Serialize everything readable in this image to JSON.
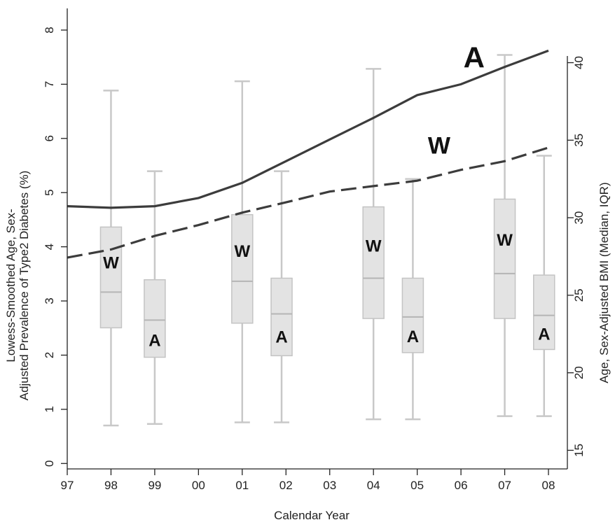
{
  "chart_data": {
    "type": "line",
    "xlabel": "Calendar Year",
    "ylabel_left": [
      "Lowess-Smoothed Age, Sex-",
      "Adjusted Prevalence of Type2 Diabetes (%)"
    ],
    "ylabel_right": "Age, Sex-Adjusted BMI (Median, IQR)",
    "x_ticks": [
      "97",
      "98",
      "99",
      "00",
      "01",
      "02",
      "03",
      "04",
      "05",
      "06",
      "07",
      "08"
    ],
    "y_left": {
      "range": [
        -0.1,
        8.4
      ],
      "ticks": [
        0,
        1,
        2,
        3,
        4,
        5,
        6,
        7,
        8
      ]
    },
    "y_right": {
      "range": [
        13.8,
        43.5
      ],
      "ticks": [
        15,
        20,
        25,
        30,
        35,
        40
      ]
    },
    "series": [
      {
        "name": "A",
        "style": "solid",
        "x": [
          97,
          98,
          99,
          100,
          101,
          102,
          103,
          104,
          105,
          106,
          107,
          108
        ],
        "y": [
          4.75,
          4.72,
          4.75,
          4.9,
          5.18,
          5.58,
          5.98,
          6.38,
          6.8,
          7.0,
          7.32,
          7.62
        ]
      },
      {
        "name": "W",
        "style": "dashed",
        "x": [
          97,
          98,
          99,
          100,
          101,
          102,
          103,
          104,
          105,
          106,
          107,
          108
        ],
        "y": [
          3.8,
          3.95,
          4.2,
          4.4,
          4.63,
          4.82,
          5.02,
          5.12,
          5.22,
          5.42,
          5.58,
          5.83
        ]
      }
    ],
    "boxplots": {
      "axis": "right",
      "items": [
        {
          "label": "W",
          "x": 98,
          "low": 16.6,
          "q1": 22.9,
          "median": 25.2,
          "q3": 29.4,
          "high": 38.2
        },
        {
          "label": "A",
          "x": 99,
          "low": 16.7,
          "q1": 21.0,
          "median": 23.4,
          "q3": 26.0,
          "high": 33.0
        },
        {
          "label": "W",
          "x": 101,
          "low": 16.8,
          "q1": 23.2,
          "median": 25.9,
          "q3": 30.2,
          "high": 38.8
        },
        {
          "label": "A",
          "x": 101.9,
          "low": 16.8,
          "q1": 21.1,
          "median": 23.8,
          "q3": 26.1,
          "high": 33.0
        },
        {
          "label": "W",
          "x": 104,
          "low": 17.0,
          "q1": 23.5,
          "median": 26.1,
          "q3": 30.7,
          "high": 39.6
        },
        {
          "label": "A",
          "x": 104.9,
          "low": 17.0,
          "q1": 21.3,
          "median": 23.6,
          "q3": 26.1,
          "high": 32.5
        },
        {
          "label": "W",
          "x": 107,
          "low": 17.2,
          "q1": 23.5,
          "median": 26.4,
          "q3": 31.2,
          "high": 40.5
        },
        {
          "label": "A",
          "x": 107.9,
          "low": 17.2,
          "q1": 21.5,
          "median": 23.7,
          "q3": 26.3,
          "high": 34.0
        }
      ]
    },
    "annotations": [
      {
        "text": "A",
        "series": "A"
      },
      {
        "text": "W",
        "series": "W"
      }
    ],
    "grid": false,
    "colors": {
      "solid_line": "#3c3c3c",
      "dashed_line": "#3c3c3c",
      "box_fill": "#e3e3e3",
      "box_stroke": "#c4c4c4",
      "whisker": "#c8c8c8"
    }
  }
}
